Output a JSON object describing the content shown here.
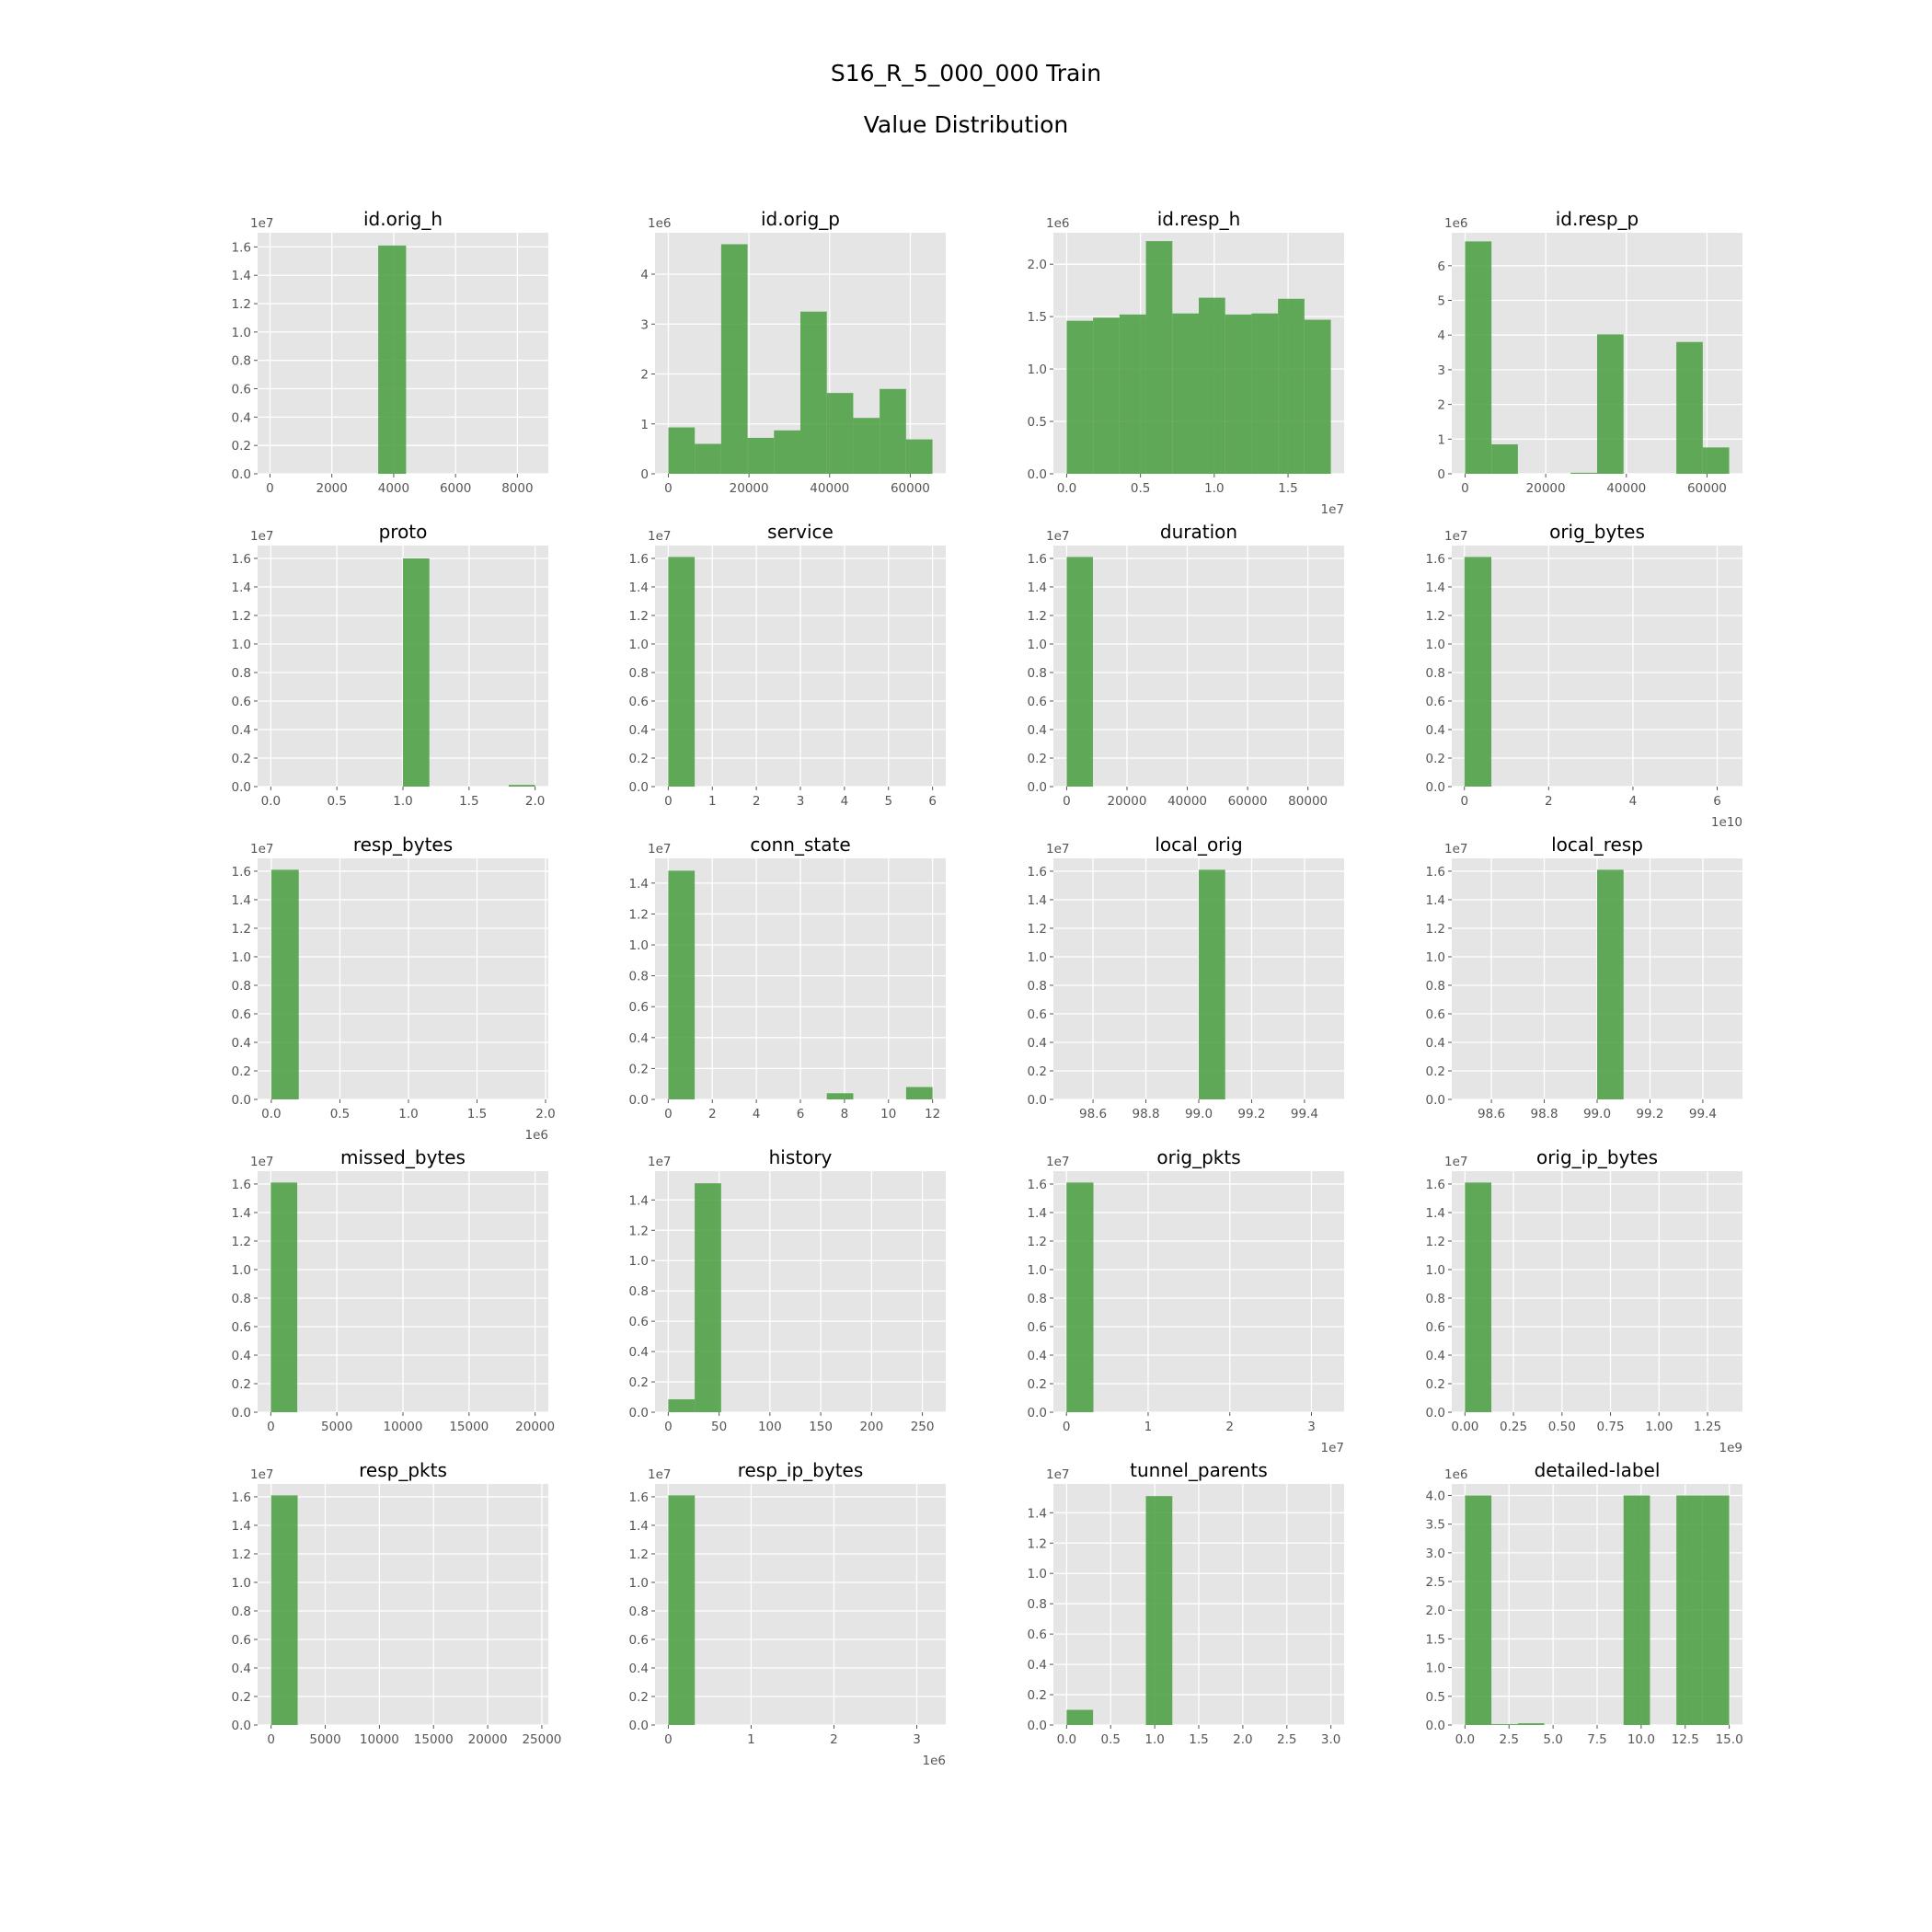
{
  "title_line1": "S16_R_5_000_000 Train",
  "title_line2": "Value Distribution",
  "colors": {
    "bar": "#4c9f43",
    "panel_bg": "#e5e5e5",
    "grid": "#ffffff",
    "tick_text": "#555555"
  },
  "chart_data": [
    {
      "type": "bar",
      "title": "id.orig_h",
      "xlim": [
        -400,
        9000
      ],
      "ylim": [
        0,
        1.7
      ],
      "xticks": [
        0,
        2000,
        4000,
        6000,
        8000
      ],
      "xtick_labels": [
        "0",
        "2000",
        "4000",
        "6000",
        "8000"
      ],
      "yticks": [
        0,
        0.2,
        0.4,
        0.6,
        0.8,
        1.0,
        1.2,
        1.4,
        1.6
      ],
      "ytick_labels": [
        "0.0",
        "0.2",
        "0.4",
        "0.6",
        "0.8",
        "1.0",
        "1.2",
        "1.4",
        "1.6"
      ],
      "y_offset": "1e7",
      "x_offset": "",
      "bins": [
        [
          3500,
          4400,
          1.61
        ]
      ]
    },
    {
      "type": "bar",
      "title": "id.orig_p",
      "xlim": [
        -3300,
        68800
      ],
      "ylim": [
        0,
        4.83
      ],
      "xticks": [
        0,
        20000,
        40000,
        60000
      ],
      "xtick_labels": [
        "0",
        "20000",
        "40000",
        "60000"
      ],
      "yticks": [
        0,
        1,
        2,
        3,
        4
      ],
      "ytick_labels": [
        "0",
        "1",
        "2",
        "3",
        "4"
      ],
      "y_offset": "1e6",
      "x_offset": "",
      "bins": [
        [
          0,
          6550,
          0.93
        ],
        [
          6550,
          13100,
          0.6
        ],
        [
          13100,
          19650,
          4.6
        ],
        [
          19650,
          26200,
          0.72
        ],
        [
          26200,
          32750,
          0.87
        ],
        [
          32750,
          39300,
          3.25
        ],
        [
          39300,
          45850,
          1.62
        ],
        [
          45850,
          52400,
          1.12
        ],
        [
          52400,
          58950,
          1.7
        ],
        [
          58950,
          65500,
          0.69
        ]
      ]
    },
    {
      "type": "bar",
      "title": "id.resp_h",
      "xlim": [
        -900000,
        18800000
      ],
      "ylim": [
        0,
        2.3
      ],
      "xticks": [
        0,
        5000000,
        10000000,
        15000000
      ],
      "xtick_labels": [
        "0.0",
        "0.5",
        "1.0",
        "1.5"
      ],
      "yticks": [
        0,
        0.5,
        1.0,
        1.5,
        2.0
      ],
      "ytick_labels": [
        "0.0",
        "0.5",
        "1.0",
        "1.5",
        "2.0"
      ],
      "y_offset": "1e6",
      "x_offset": "1e7",
      "bins": [
        [
          0,
          1790000,
          1.46
        ],
        [
          1790000,
          3580000,
          1.49
        ],
        [
          3580000,
          5370000,
          1.52
        ],
        [
          5370000,
          7160000,
          2.22
        ],
        [
          7160000,
          8950000,
          1.53
        ],
        [
          8950000,
          10740000,
          1.68
        ],
        [
          10740000,
          12530000,
          1.52
        ],
        [
          12530000,
          14320000,
          1.53
        ],
        [
          14320000,
          16110000,
          1.67
        ],
        [
          16110000,
          17900000,
          1.47
        ]
      ]
    },
    {
      "type": "bar",
      "title": "id.resp_p",
      "xlim": [
        -3300,
        68800
      ],
      "ylim": [
        0,
        6.95
      ],
      "xticks": [
        0,
        20000,
        40000,
        60000
      ],
      "xtick_labels": [
        "0",
        "20000",
        "40000",
        "60000"
      ],
      "yticks": [
        0,
        1,
        2,
        3,
        4,
        5,
        6
      ],
      "ytick_labels": [
        "0",
        "1",
        "2",
        "3",
        "4",
        "5",
        "6"
      ],
      "y_offset": "1e6",
      "x_offset": "",
      "bins": [
        [
          0,
          6550,
          6.7
        ],
        [
          6550,
          13100,
          0.85
        ],
        [
          26200,
          32750,
          0.03
        ],
        [
          32750,
          39300,
          4.02
        ],
        [
          52400,
          58950,
          3.8
        ],
        [
          58950,
          65500,
          0.76
        ]
      ]
    },
    {
      "type": "bar",
      "title": "proto",
      "xlim": [
        -0.1,
        2.1
      ],
      "ylim": [
        0,
        1.69
      ],
      "xticks": [
        0,
        0.5,
        1.0,
        1.5,
        2.0
      ],
      "xtick_labels": [
        "0.0",
        "0.5",
        "1.0",
        "1.5",
        "2.0"
      ],
      "yticks": [
        0,
        0.2,
        0.4,
        0.6,
        0.8,
        1.0,
        1.2,
        1.4,
        1.6
      ],
      "ytick_labels": [
        "0.0",
        "0.2",
        "0.4",
        "0.6",
        "0.8",
        "1.0",
        "1.2",
        "1.4",
        "1.6"
      ],
      "y_offset": "1e7",
      "x_offset": "",
      "bins": [
        [
          1.0,
          1.2,
          1.6
        ],
        [
          1.8,
          2.0,
          0.012
        ]
      ]
    },
    {
      "type": "bar",
      "title": "service",
      "xlim": [
        -0.3,
        6.3
      ],
      "ylim": [
        0,
        1.69
      ],
      "xticks": [
        0,
        1,
        2,
        3,
        4,
        5,
        6
      ],
      "xtick_labels": [
        "0",
        "1",
        "2",
        "3",
        "4",
        "5",
        "6"
      ],
      "yticks": [
        0,
        0.2,
        0.4,
        0.6,
        0.8,
        1.0,
        1.2,
        1.4,
        1.6
      ],
      "ytick_labels": [
        "0.0",
        "0.2",
        "0.4",
        "0.6",
        "0.8",
        "1.0",
        "1.2",
        "1.4",
        "1.6"
      ],
      "y_offset": "1e7",
      "x_offset": "",
      "bins": [
        [
          0,
          0.6,
          1.61
        ]
      ]
    },
    {
      "type": "bar",
      "title": "duration",
      "xlim": [
        -4400,
        92000
      ],
      "ylim": [
        0,
        1.69
      ],
      "xticks": [
        0,
        20000,
        40000,
        60000,
        80000
      ],
      "xtick_labels": [
        "0",
        "20000",
        "40000",
        "60000",
        "80000"
      ],
      "yticks": [
        0,
        0.2,
        0.4,
        0.6,
        0.8,
        1.0,
        1.2,
        1.4,
        1.6
      ],
      "ytick_labels": [
        "0.0",
        "0.2",
        "0.4",
        "0.6",
        "0.8",
        "1.0",
        "1.2",
        "1.4",
        "1.6"
      ],
      "y_offset": "1e7",
      "x_offset": "",
      "bins": [
        [
          0,
          8700,
          1.61
        ]
      ]
    },
    {
      "type": "bar",
      "title": "orig_bytes",
      "xlim": [
        -0.3,
        6.6
      ],
      "ylim": [
        0,
        1.69
      ],
      "xticks": [
        0,
        2,
        4,
        6
      ],
      "xtick_labels": [
        "0",
        "2",
        "4",
        "6"
      ],
      "yticks": [
        0,
        0.2,
        0.4,
        0.6,
        0.8,
        1.0,
        1.2,
        1.4,
        1.6
      ],
      "ytick_labels": [
        "0.0",
        "0.2",
        "0.4",
        "0.6",
        "0.8",
        "1.0",
        "1.2",
        "1.4",
        "1.6"
      ],
      "y_offset": "1e7",
      "x_offset": "1e10",
      "bins": [
        [
          0,
          0.64,
          1.61
        ]
      ]
    },
    {
      "type": "bar",
      "title": "resp_bytes",
      "xlim": [
        -0.1,
        2.02
      ],
      "ylim": [
        0,
        1.69
      ],
      "xticks": [
        0,
        0.5,
        1.0,
        1.5,
        2.0
      ],
      "xtick_labels": [
        "0.0",
        "0.5",
        "1.0",
        "1.5",
        "2.0"
      ],
      "yticks": [
        0,
        0.2,
        0.4,
        0.6,
        0.8,
        1.0,
        1.2,
        1.4,
        1.6
      ],
      "ytick_labels": [
        "0.0",
        "0.2",
        "0.4",
        "0.6",
        "0.8",
        "1.0",
        "1.2",
        "1.4",
        "1.6"
      ],
      "y_offset": "1e7",
      "x_offset": "1e6",
      "bins": [
        [
          0,
          0.2,
          1.61
        ]
      ]
    },
    {
      "type": "bar",
      "title": "conn_state",
      "xlim": [
        -0.6,
        12.6
      ],
      "ylim": [
        0,
        1.56
      ],
      "xticks": [
        0,
        2,
        4,
        6,
        8,
        10,
        12
      ],
      "xtick_labels": [
        "0",
        "2",
        "4",
        "6",
        "8",
        "10",
        "12"
      ],
      "yticks": [
        0,
        0.2,
        0.4,
        0.6,
        0.8,
        1.0,
        1.2,
        1.4
      ],
      "ytick_labels": [
        "0.0",
        "0.2",
        "0.4",
        "0.6",
        "0.8",
        "1.0",
        "1.2",
        "1.4"
      ],
      "y_offset": "1e7",
      "x_offset": "",
      "bins": [
        [
          0,
          1.2,
          1.48
        ],
        [
          7.2,
          8.4,
          0.04
        ],
        [
          10.8,
          12.0,
          0.08
        ]
      ]
    },
    {
      "type": "bar",
      "title": "local_orig",
      "xlim": [
        98.45,
        99.55
      ],
      "ylim": [
        0,
        1.69
      ],
      "xticks": [
        98.6,
        98.8,
        99.0,
        99.2,
        99.4
      ],
      "xtick_labels": [
        "98.6",
        "98.8",
        "99.0",
        "99.2",
        "99.4"
      ],
      "yticks": [
        0,
        0.2,
        0.4,
        0.6,
        0.8,
        1.0,
        1.2,
        1.4,
        1.6
      ],
      "ytick_labels": [
        "0.0",
        "0.2",
        "0.4",
        "0.6",
        "0.8",
        "1.0",
        "1.2",
        "1.4",
        "1.6"
      ],
      "y_offset": "1e7",
      "x_offset": "",
      "bins": [
        [
          99.0,
          99.1,
          1.61
        ]
      ]
    },
    {
      "type": "bar",
      "title": "local_resp",
      "xlim": [
        98.45,
        99.55
      ],
      "ylim": [
        0,
        1.69
      ],
      "xticks": [
        98.6,
        98.8,
        99.0,
        99.2,
        99.4
      ],
      "xtick_labels": [
        "98.6",
        "98.8",
        "99.0",
        "99.2",
        "99.4"
      ],
      "yticks": [
        0,
        0.2,
        0.4,
        0.6,
        0.8,
        1.0,
        1.2,
        1.4,
        1.6
      ],
      "ytick_labels": [
        "0.0",
        "0.2",
        "0.4",
        "0.6",
        "0.8",
        "1.0",
        "1.2",
        "1.4",
        "1.6"
      ],
      "y_offset": "1e7",
      "x_offset": "",
      "bins": [
        [
          99.0,
          99.1,
          1.61
        ]
      ]
    },
    {
      "type": "bar",
      "title": "missed_bytes",
      "xlim": [
        -1000,
        21000
      ],
      "ylim": [
        0,
        1.69
      ],
      "xticks": [
        0,
        5000,
        10000,
        15000,
        20000
      ],
      "xtick_labels": [
        "0",
        "5000",
        "10000",
        "15000",
        "20000"
      ],
      "yticks": [
        0,
        0.2,
        0.4,
        0.6,
        0.8,
        1.0,
        1.2,
        1.4,
        1.6
      ],
      "ytick_labels": [
        "0.0",
        "0.2",
        "0.4",
        "0.6",
        "0.8",
        "1.0",
        "1.2",
        "1.4",
        "1.6"
      ],
      "y_offset": "1e7",
      "x_offset": "",
      "bins": [
        [
          0,
          2000,
          1.61
        ]
      ]
    },
    {
      "type": "bar",
      "title": "history",
      "xlim": [
        -13,
        273
      ],
      "ylim": [
        0,
        1.59
      ],
      "xticks": [
        0,
        50,
        100,
        150,
        200,
        250
      ],
      "xtick_labels": [
        "0",
        "50",
        "100",
        "150",
        "200",
        "250"
      ],
      "yticks": [
        0,
        0.2,
        0.4,
        0.6,
        0.8,
        1.0,
        1.2,
        1.4
      ],
      "ytick_labels": [
        "0.0",
        "0.2",
        "0.4",
        "0.6",
        "0.8",
        "1.0",
        "1.2",
        "1.4"
      ],
      "y_offset": "1e7",
      "x_offset": "",
      "bins": [
        [
          0,
          26,
          0.085
        ],
        [
          26,
          52,
          1.51
        ]
      ]
    },
    {
      "type": "bar",
      "title": "orig_pkts",
      "xlim": [
        -0.16,
        3.4
      ],
      "ylim": [
        0,
        1.69
      ],
      "xticks": [
        0,
        1,
        2,
        3
      ],
      "xtick_labels": [
        "0",
        "1",
        "2",
        "3"
      ],
      "yticks": [
        0,
        0.2,
        0.4,
        0.6,
        0.8,
        1.0,
        1.2,
        1.4,
        1.6
      ],
      "ytick_labels": [
        "0.0",
        "0.2",
        "0.4",
        "0.6",
        "0.8",
        "1.0",
        "1.2",
        "1.4",
        "1.6"
      ],
      "y_offset": "1e7",
      "x_offset": "1e7",
      "bins": [
        [
          0,
          0.33,
          1.61
        ]
      ]
    },
    {
      "type": "bar",
      "title": "orig_ip_bytes",
      "xlim": [
        -0.068,
        1.43
      ],
      "ylim": [
        0,
        1.69
      ],
      "xticks": [
        0,
        0.25,
        0.5,
        0.75,
        1.0,
        1.25
      ],
      "xtick_labels": [
        "0.00",
        "0.25",
        "0.50",
        "0.75",
        "1.00",
        "1.25"
      ],
      "y_offset": "1e7",
      "x_offset": "1e9",
      "yticks": [
        0,
        0.2,
        0.4,
        0.6,
        0.8,
        1.0,
        1.2,
        1.4,
        1.6
      ],
      "ytick_labels": [
        "0.0",
        "0.2",
        "0.4",
        "0.6",
        "0.8",
        "1.0",
        "1.2",
        "1.4",
        "1.6"
      ],
      "bins": [
        [
          0,
          0.136,
          1.61
        ]
      ]
    },
    {
      "type": "bar",
      "title": "resp_pkts",
      "xlim": [
        -1250,
        25600
      ],
      "ylim": [
        0,
        1.69
      ],
      "xticks": [
        0,
        5000,
        10000,
        15000,
        20000,
        25000
      ],
      "xtick_labels": [
        "0",
        "5000",
        "10000",
        "15000",
        "20000",
        "25000"
      ],
      "yticks": [
        0,
        0.2,
        0.4,
        0.6,
        0.8,
        1.0,
        1.2,
        1.4,
        1.6
      ],
      "ytick_labels": [
        "0.0",
        "0.2",
        "0.4",
        "0.6",
        "0.8",
        "1.0",
        "1.2",
        "1.4",
        "1.6"
      ],
      "y_offset": "1e7",
      "x_offset": "",
      "bins": [
        [
          0,
          2450,
          1.61
        ]
      ]
    },
    {
      "type": "bar",
      "title": "resp_ip_bytes",
      "xlim": [
        -0.16,
        3.35
      ],
      "ylim": [
        0,
        1.69
      ],
      "xticks": [
        0,
        1,
        2,
        3
      ],
      "xtick_labels": [
        "0",
        "1",
        "2",
        "3"
      ],
      "yticks": [
        0,
        0.2,
        0.4,
        0.6,
        0.8,
        1.0,
        1.2,
        1.4,
        1.6
      ],
      "ytick_labels": [
        "0.0",
        "0.2",
        "0.4",
        "0.6",
        "0.8",
        "1.0",
        "1.2",
        "1.4",
        "1.6"
      ],
      "y_offset": "1e7",
      "x_offset": "1e6",
      "bins": [
        [
          0,
          0.32,
          1.61
        ]
      ]
    },
    {
      "type": "bar",
      "title": "tunnel_parents",
      "xlim": [
        -0.15,
        3.15
      ],
      "ylim": [
        0,
        1.59
      ],
      "xticks": [
        0,
        0.5,
        1.0,
        1.5,
        2.0,
        2.5,
        3.0
      ],
      "xtick_labels": [
        "0.0",
        "0.5",
        "1.0",
        "1.5",
        "2.0",
        "2.5",
        "3.0"
      ],
      "yticks": [
        0,
        0.2,
        0.4,
        0.6,
        0.8,
        1.0,
        1.2,
        1.4
      ],
      "ytick_labels": [
        "0.0",
        "0.2",
        "0.4",
        "0.6",
        "0.8",
        "1.0",
        "1.2",
        "1.4"
      ],
      "y_offset": "1e7",
      "x_offset": "",
      "bins": [
        [
          0,
          0.3,
          0.1
        ],
        [
          0.9,
          1.2,
          1.51
        ]
      ]
    },
    {
      "type": "bar",
      "title": "detailed-label",
      "xlim": [
        -0.75,
        15.75
      ],
      "ylim": [
        0,
        4.2
      ],
      "xticks": [
        0,
        2.5,
        5,
        7.5,
        10,
        12.5,
        15
      ],
      "xtick_labels": [
        "0.0",
        "2.5",
        "5.0",
        "7.5",
        "10.0",
        "12.5",
        "15.0"
      ],
      "yticks": [
        0,
        0.5,
        1.0,
        1.5,
        2.0,
        2.5,
        3.0,
        3.5,
        4.0
      ],
      "ytick_labels": [
        "0.0",
        "0.5",
        "1.0",
        "1.5",
        "2.0",
        "2.5",
        "3.0",
        "3.5",
        "4.0"
      ],
      "y_offset": "1e6",
      "x_offset": "",
      "bins": [
        [
          0,
          1.5,
          4.0
        ],
        [
          1.5,
          3.0,
          0.015
        ],
        [
          3.0,
          4.5,
          0.03
        ],
        [
          9.0,
          10.5,
          4.0
        ],
        [
          12.0,
          13.5,
          4.0
        ],
        [
          13.5,
          15.0,
          4.0
        ]
      ]
    }
  ]
}
